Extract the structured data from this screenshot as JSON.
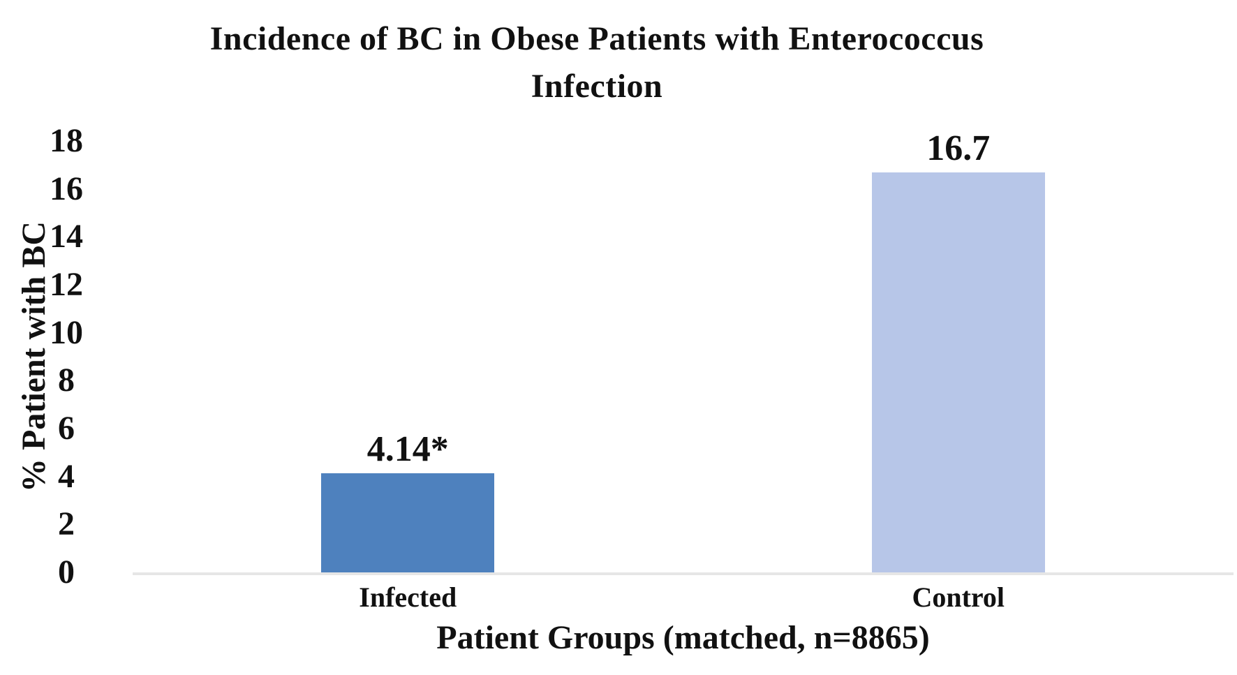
{
  "chart_data": {
    "type": "bar",
    "title": "Incidence of BC in Obese Patients with Enterococcus Infection",
    "title_lines": [
      "Incidence of BC in Obese Patients with Enterococcus",
      "Infection"
    ],
    "xlabel": "Patient Groups (matched, n=8865)",
    "ylabel": "% Patient with BC",
    "categories": [
      "Infected",
      "Control"
    ],
    "values": [
      4.14,
      16.7
    ],
    "bar_labels": [
      "4.14*",
      "16.7"
    ],
    "ylim": [
      0,
      18
    ],
    "ytick_step": 2,
    "yticks": [
      0,
      2,
      4,
      6,
      8,
      10,
      12,
      14,
      16,
      18
    ],
    "grid": false,
    "legend": "none",
    "colors": {
      "bars": [
        "#4E81BE",
        "#B7C6E8"
      ],
      "axis_line": "#E6E6E6",
      "text": "#111111",
      "background": "#FFFFFF"
    }
  }
}
